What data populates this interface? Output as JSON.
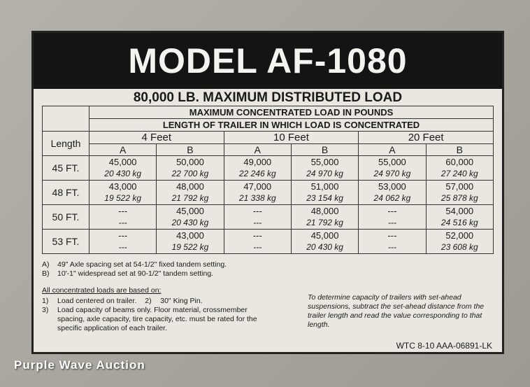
{
  "header": {
    "title": "MODEL AF-1080",
    "subtitle": "80,000 LB. MAXIMUM DISTRIBUTED LOAD"
  },
  "table": {
    "caption_rows": [
      "MAXIMUM CONCENTRATED LOAD IN POUNDS",
      "LENGTH OF TRAILER IN WHICH LOAD IS CONCENTRATED"
    ],
    "length_label": "Length",
    "groups": [
      "4 Feet",
      "10 Feet",
      "20 Feet"
    ],
    "subcolumns": [
      "A",
      "B",
      "A",
      "B",
      "A",
      "B"
    ],
    "rows": [
      {
        "label": "45 FT.",
        "cells": [
          [
            "45,000",
            "20 430 kg"
          ],
          [
            "50,000",
            "22 700 kg"
          ],
          [
            "49,000",
            "22 246 kg"
          ],
          [
            "55,000",
            "24 970 kg"
          ],
          [
            "55,000",
            "24 970 kg"
          ],
          [
            "60,000",
            "27 240 kg"
          ]
        ]
      },
      {
        "label": "48 FT.",
        "cells": [
          [
            "43,000",
            "19 522 kg"
          ],
          [
            "48,000",
            "21 792 kg"
          ],
          [
            "47,000",
            "21 338 kg"
          ],
          [
            "51,000",
            "23 154 kg"
          ],
          [
            "53,000",
            "24 062 kg"
          ],
          [
            "57,000",
            "25 878 kg"
          ]
        ]
      },
      {
        "label": "50 FT.",
        "cells": [
          [
            "---",
            "---"
          ],
          [
            "45,000",
            "20 430 kg"
          ],
          [
            "---",
            "---"
          ],
          [
            "48,000",
            "21 792 kg"
          ],
          [
            "---",
            "---"
          ],
          [
            "54,000",
            "24 516 kg"
          ]
        ]
      },
      {
        "label": "53 FT.",
        "cells": [
          [
            "---",
            "---"
          ],
          [
            "43,000",
            "19 522 kg"
          ],
          [
            "---",
            "---"
          ],
          [
            "45,000",
            "20 430 kg"
          ],
          [
            "---",
            "---"
          ],
          [
            "52,000",
            "23 608 kg"
          ]
        ]
      }
    ]
  },
  "notes": {
    "spacing": [
      {
        "marker": "A)",
        "text": "49\" Axle spacing set at 54-1/2\" fixed tandem setting."
      },
      {
        "marker": "B)",
        "text": "10'-1\" widespread set at 90-1/2\" tandem setting."
      }
    ],
    "basis_heading": "All concentrated loads are based on:",
    "basis": [
      {
        "marker": "1)",
        "text": "Load centered on trailer."
      },
      {
        "marker": "2)",
        "text": "30\" King Pin."
      },
      {
        "marker": "3)",
        "text": "Load capacity of beams only. Floor material, crossmember spacing, axle capacity, tire capacity, etc. must be rated for the specific application of each trailer."
      }
    ],
    "set_ahead": "To determine capacity of trailers with set-ahead suspensions, subtract the set-ahead distance from the trailer length and read the value corresponding to that length.",
    "code": "WTC 8-10 AAA-06891-LK"
  },
  "watermark": "Purple Wave Auction"
}
